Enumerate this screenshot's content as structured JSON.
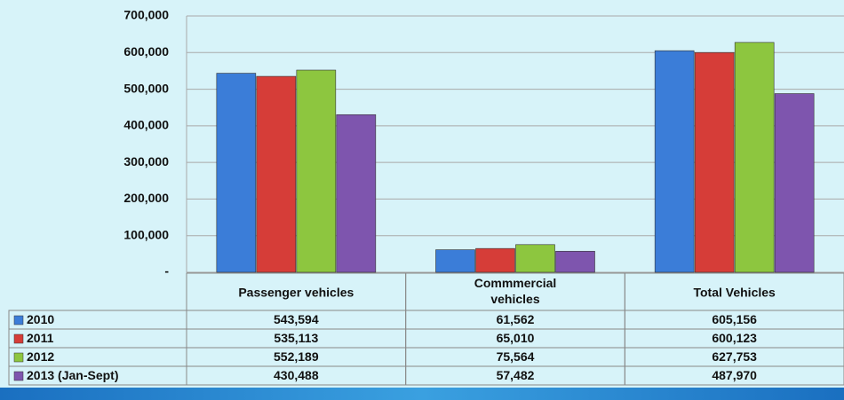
{
  "chart_data": {
    "type": "bar",
    "categories": [
      "Passenger vehicles",
      "Commmercial vehicles",
      "Total Vehicles"
    ],
    "series": [
      {
        "name": "2010",
        "color": "#3b7dd8",
        "values": [
          543594,
          61562,
          605156
        ],
        "value_labels": [
          "543,594",
          "61,562",
          "605,156"
        ]
      },
      {
        "name": "2011",
        "color": "#d63d38",
        "values": [
          535113,
          65010,
          600123
        ],
        "value_labels": [
          "535,113",
          "65,010",
          "600,123"
        ]
      },
      {
        "name": "2012",
        "color": "#8dc63f",
        "values": [
          552189,
          75564,
          627753
        ],
        "value_labels": [
          "552,189",
          "75,564",
          "627,753"
        ]
      },
      {
        "name": "2013 (Jan-Sept)",
        "color": "#7e55ae",
        "values": [
          430488,
          57482,
          487970
        ],
        "value_labels": [
          "430,488",
          "57,482",
          "487,970"
        ]
      }
    ],
    "ylim": [
      0,
      700000
    ],
    "yticks": [
      {
        "value": 0,
        "label": "-"
      },
      {
        "value": 100000,
        "label": "100,000"
      },
      {
        "value": 200000,
        "label": "200,000"
      },
      {
        "value": 300000,
        "label": "300,000"
      },
      {
        "value": 400000,
        "label": "400,000"
      },
      {
        "value": 500000,
        "label": "500,000"
      },
      {
        "value": 600000,
        "label": "600,000"
      },
      {
        "value": 700000,
        "label": "700,000"
      }
    ],
    "grid": true
  }
}
